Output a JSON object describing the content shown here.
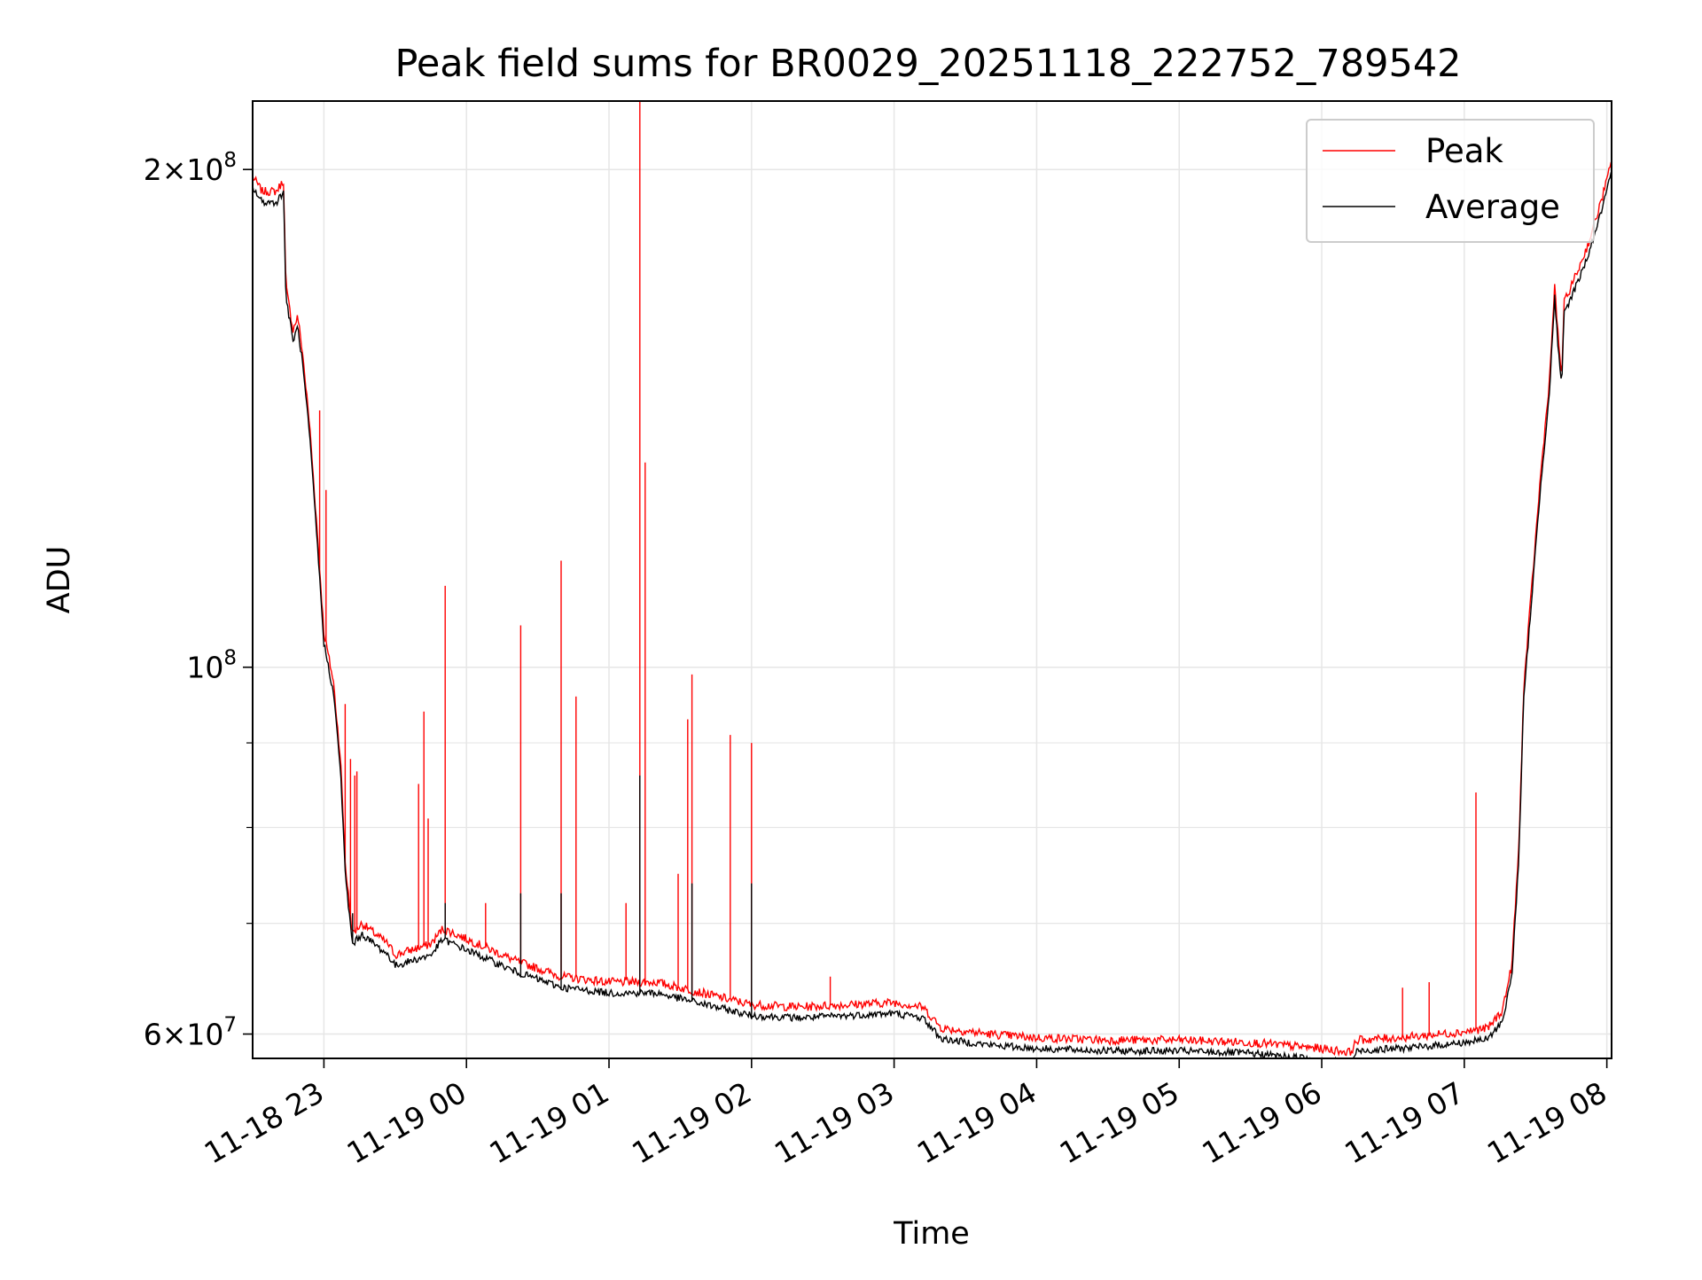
{
  "chart_data": {
    "type": "line",
    "title": "Peak field sums for BR0029_20251118_222752_789542",
    "xlabel": "Time",
    "ylabel": "ADU",
    "x_axis": {
      "kind": "datetime",
      "start": "2025-11-18 22:30",
      "end": "2025-11-19 08:02",
      "ticks": [
        {
          "t": "2025-11-18 23:00",
          "label": "11-18 23"
        },
        {
          "t": "2025-11-19 00:00",
          "label": "11-19 00"
        },
        {
          "t": "2025-11-19 01:00",
          "label": "11-19 01"
        },
        {
          "t": "2025-11-19 02:00",
          "label": "11-19 02"
        },
        {
          "t": "2025-11-19 03:00",
          "label": "11-19 03"
        },
        {
          "t": "2025-11-19 04:00",
          "label": "11-19 04"
        },
        {
          "t": "2025-11-19 05:00",
          "label": "11-19 05"
        },
        {
          "t": "2025-11-19 06:00",
          "label": "11-19 06"
        },
        {
          "t": "2025-11-19 07:00",
          "label": "11-19 07"
        },
        {
          "t": "2025-11-19 08:00",
          "label": "11-19 08"
        }
      ]
    },
    "y_axis": {
      "scale": "log",
      "ylim": [
        58000000,
        220000000
      ],
      "major_ticks": [
        {
          "value": 60000000,
          "base": "6",
          "exp": "7"
        },
        {
          "value": 100000000,
          "base": "",
          "exp": "8"
        },
        {
          "value": 200000000,
          "base": "2",
          "exp": "8"
        }
      ],
      "minor_ticks": [
        70000000,
        80000000,
        90000000
      ]
    },
    "grid": true,
    "legend": {
      "position": "top-right"
    },
    "series": [
      {
        "name": "Peak",
        "color": "#ff0000",
        "baseline": [
          [
            "2025-11-18 22:30",
            198000000
          ],
          [
            "2025-11-18 22:34",
            194000000
          ],
          [
            "2025-11-18 22:40",
            194000000
          ],
          [
            "2025-11-18 22:43",
            197000000
          ],
          [
            "2025-11-18 22:44",
            170000000
          ],
          [
            "2025-11-18 22:47",
            160000000
          ],
          [
            "2025-11-18 22:49",
            163000000
          ],
          [
            "2025-11-18 22:51",
            155000000
          ],
          [
            "2025-11-18 22:54",
            140000000
          ],
          [
            "2025-11-18 22:57",
            122000000
          ],
          [
            "2025-11-18 23:00",
            105000000
          ],
          [
            "2025-11-18 23:04",
            98000000
          ],
          [
            "2025-11-18 23:07",
            88000000
          ],
          [
            "2025-11-18 23:09",
            76000000
          ],
          [
            "2025-11-18 23:12",
            69000000
          ],
          [
            "2025-11-18 23:16",
            70000000
          ],
          [
            "2025-11-18 23:27",
            68000000
          ],
          [
            "2025-11-18 23:30",
            67000000
          ],
          [
            "2025-11-18 23:45",
            68000000
          ],
          [
            "2025-11-18 23:50",
            69500000
          ],
          [
            "2025-11-19 00:05",
            68000000
          ],
          [
            "2025-11-19 00:20",
            66500000
          ],
          [
            "2025-11-19 00:40",
            65000000
          ],
          [
            "2025-11-19 01:00",
            64500000
          ],
          [
            "2025-11-19 01:20",
            64500000
          ],
          [
            "2025-11-19 01:40",
            63500000
          ],
          [
            "2025-11-19 02:00",
            62500000
          ],
          [
            "2025-11-19 02:20",
            62300000
          ],
          [
            "2025-11-19 02:40",
            62500000
          ],
          [
            "2025-11-19 03:00",
            62700000
          ],
          [
            "2025-11-19 03:12",
            62300000
          ],
          [
            "2025-11-19 03:20",
            60500000
          ],
          [
            "2025-11-19 03:40",
            60000000
          ],
          [
            "2025-11-19 04:00",
            59700000
          ],
          [
            "2025-11-19 04:30",
            59500000
          ],
          [
            "2025-11-19 05:00",
            59500000
          ],
          [
            "2025-11-19 05:30",
            59300000
          ],
          [
            "2025-11-19 06:00",
            58800000
          ],
          [
            "2025-11-19 06:12",
            58500000
          ],
          [
            "2025-11-19 06:15",
            59500000
          ],
          [
            "2025-11-19 06:40",
            59800000
          ],
          [
            "2025-11-19 07:00",
            60200000
          ],
          [
            "2025-11-19 07:10",
            60500000
          ],
          [
            "2025-11-19 07:16",
            62000000
          ],
          [
            "2025-11-19 07:20",
            66000000
          ],
          [
            "2025-11-19 07:23",
            78000000
          ],
          [
            "2025-11-19 07:25",
            97000000
          ],
          [
            "2025-11-19 07:28",
            110000000
          ],
          [
            "2025-11-19 07:32",
            130000000
          ],
          [
            "2025-11-19 07:36",
            150000000
          ],
          [
            "2025-11-19 07:38",
            170000000
          ],
          [
            "2025-11-19 07:40",
            155000000
          ],
          [
            "2025-11-19 07:41",
            150000000
          ],
          [
            "2025-11-19 07:42",
            166000000
          ],
          [
            "2025-11-19 07:45",
            170000000
          ],
          [
            "2025-11-19 07:48",
            174000000
          ],
          [
            "2025-11-19 07:52",
            180000000
          ],
          [
            "2025-11-19 07:57",
            190000000
          ],
          [
            "2025-11-19 08:02",
            202000000
          ]
        ],
        "spikes": [
          [
            "2025-11-18 22:58",
            143000000
          ],
          [
            "2025-11-18 23:01",
            128000000
          ],
          [
            "2025-11-18 23:09",
            95000000
          ],
          [
            "2025-11-18 23:11",
            88000000
          ],
          [
            "2025-11-18 23:13",
            86000000
          ],
          [
            "2025-11-18 23:14",
            86500000
          ],
          [
            "2025-11-18 23:40",
            85000000
          ],
          [
            "2025-11-18 23:42",
            94000000
          ],
          [
            "2025-11-18 23:44",
            81000000
          ],
          [
            "2025-11-18 23:51",
            112000000
          ],
          [
            "2025-11-19 00:08",
            72000000
          ],
          [
            "2025-11-19 00:23",
            106000000
          ],
          [
            "2025-11-19 00:40",
            116000000
          ],
          [
            "2025-11-19 00:46",
            96000000
          ],
          [
            "2025-11-19 01:07",
            72000000
          ],
          [
            "2025-11-19 01:13",
            220000000
          ],
          [
            "2025-11-19 01:15",
            133000000
          ],
          [
            "2025-11-19 01:29",
            75000000
          ],
          [
            "2025-11-19 01:33",
            93000000
          ],
          [
            "2025-11-19 01:35",
            99000000
          ],
          [
            "2025-11-19 01:51",
            91000000
          ],
          [
            "2025-11-19 02:00",
            90000000
          ],
          [
            "2025-11-19 02:33",
            65000000
          ],
          [
            "2025-11-19 06:34",
            64000000
          ],
          [
            "2025-11-19 06:45",
            64500000
          ],
          [
            "2025-11-19 07:05",
            84000000
          ]
        ]
      },
      {
        "name": "Average",
        "color": "#000000",
        "offset_ratio": 0.985,
        "spikes": [
          [
            "2025-11-18 23:12",
            71000000
          ],
          [
            "2025-11-18 23:51",
            72000000
          ],
          [
            "2025-11-19 00:23",
            73000000
          ],
          [
            "2025-11-19 00:40",
            73000000
          ],
          [
            "2025-11-19 01:13",
            86000000
          ],
          [
            "2025-11-19 01:35",
            74000000
          ],
          [
            "2025-11-19 02:00",
            74000000
          ],
          [
            "2025-11-19 07:38",
            168000000
          ]
        ]
      }
    ]
  }
}
